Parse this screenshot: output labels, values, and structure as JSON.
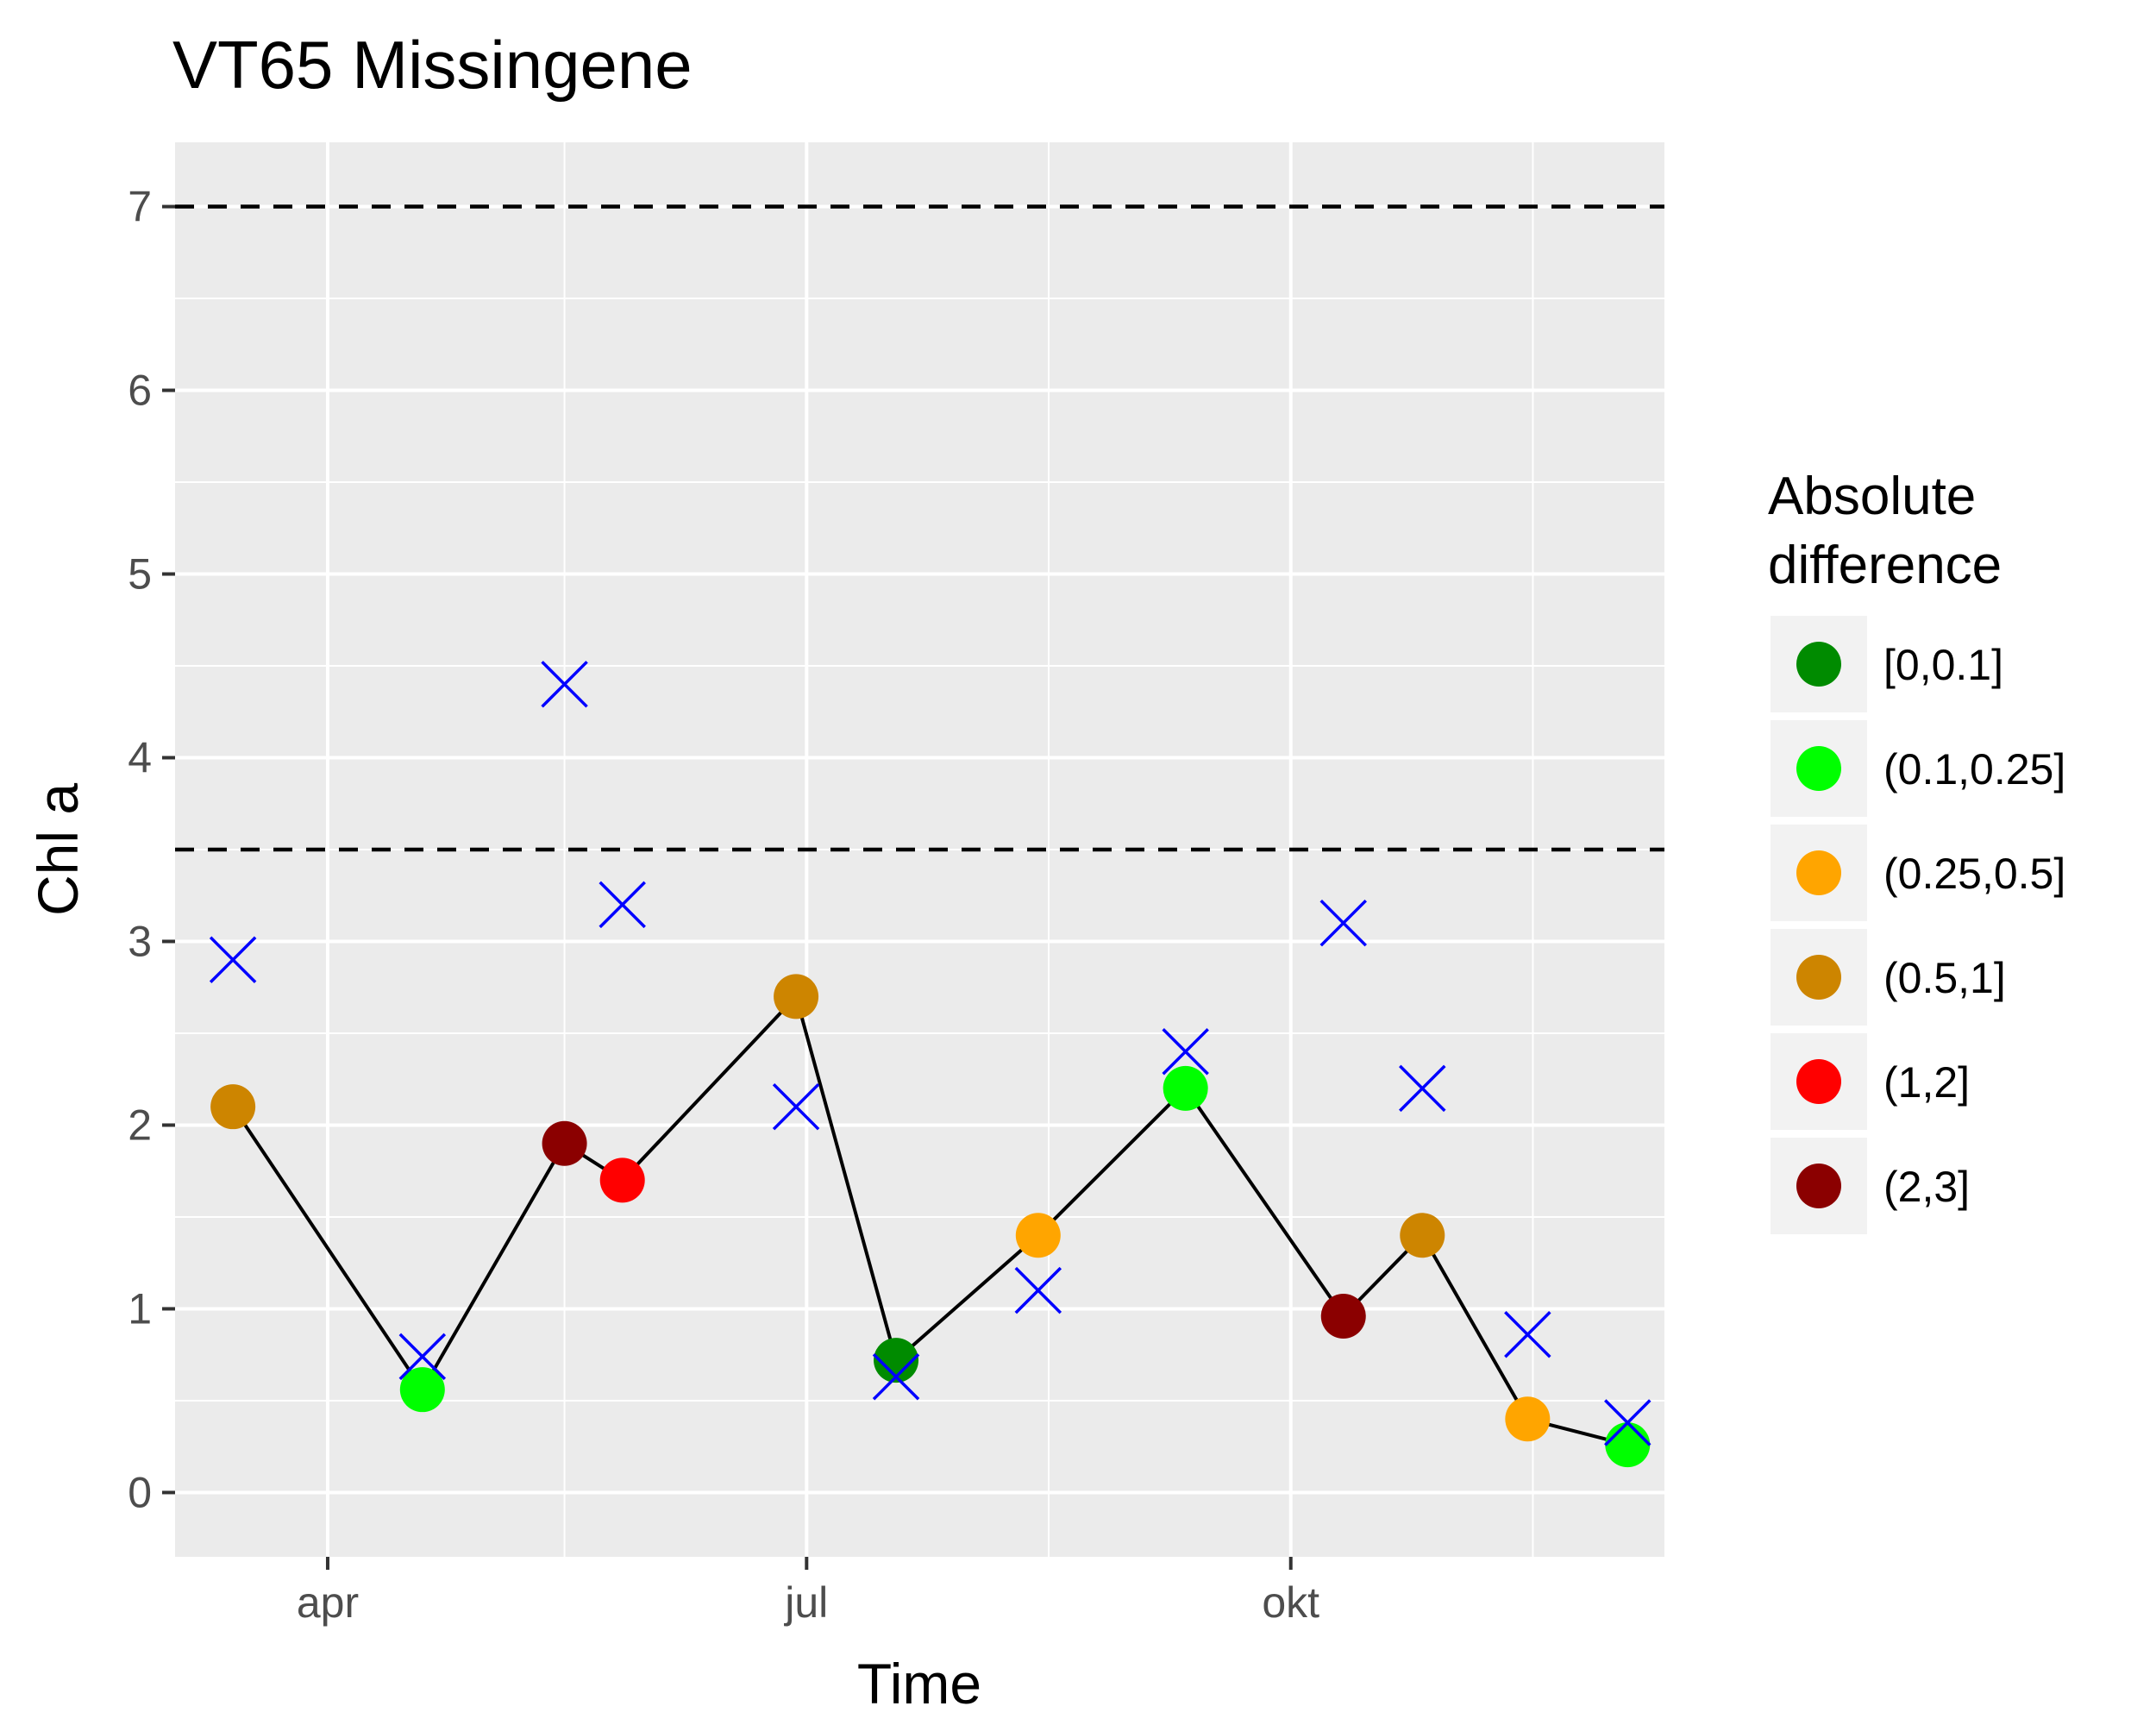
{
  "chart_data": {
    "type": "scatter",
    "title": "VT65 Missingene",
    "xlabel": "Time",
    "ylabel": "Chl a",
    "ylim": [
      -0.35,
      7.35
    ],
    "xlim": [
      "2020-03-03",
      "2020-12-11"
    ],
    "yticks": [
      0,
      1,
      2,
      3,
      4,
      5,
      6,
      7
    ],
    "xticks": [
      {
        "date": "2020-04-01",
        "label": "apr"
      },
      {
        "date": "2020-07-01",
        "label": "jul"
      },
      {
        "date": "2020-10-01",
        "label": "okt"
      }
    ],
    "x_minor_gridlines": [
      "2020-05-16",
      "2020-08-16",
      "2020-11-16"
    ],
    "reference_lines": [
      {
        "y": 3.5,
        "style": "dashed",
        "color": "#000000"
      },
      {
        "y": 7.0,
        "style": "dashed",
        "color": "#000000"
      }
    ],
    "grid": true,
    "legend_position": "right",
    "legend": {
      "title": "Absolute\ndifference",
      "title_lines": [
        "Absolute",
        "difference"
      ],
      "entries": [
        {
          "label": "[0,0.1]",
          "color": "#008b00"
        },
        {
          "label": "(0.1,0.25]",
          "color": "#00ff00"
        },
        {
          "label": "(0.25,0.5]",
          "color": "#ffa500"
        },
        {
          "label": "(0.5,1]",
          "color": "#cd8500"
        },
        {
          "label": "(1,2]",
          "color": "#ff0000"
        },
        {
          "label": "(2,3]",
          "color": "#8b0000"
        }
      ]
    },
    "series": [
      {
        "marker": "circle",
        "connected": true,
        "line_color": "#000000",
        "points": [
          {
            "date": "2020-03-14",
            "y": 2.1,
            "class": "(0.5,1]"
          },
          {
            "date": "2020-04-19",
            "y": 0.56,
            "class": "(0.1,0.25]"
          },
          {
            "date": "2020-05-16",
            "y": 1.9,
            "class": "(2,3]"
          },
          {
            "date": "2020-05-27",
            "y": 1.7,
            "class": "(1,2]"
          },
          {
            "date": "2020-06-29",
            "y": 2.7,
            "class": "(0.5,1]"
          },
          {
            "date": "2020-07-18",
            "y": 0.72,
            "class": "[0,0.1]"
          },
          {
            "date": "2020-08-14",
            "y": 1.4,
            "class": "(0.25,0.5]"
          },
          {
            "date": "2020-09-11",
            "y": 2.2,
            "class": "(0.1,0.25]"
          },
          {
            "date": "2020-10-11",
            "y": 0.96,
            "class": "(2,3]"
          },
          {
            "date": "2020-10-26",
            "y": 1.4,
            "class": "(0.5,1]"
          },
          {
            "date": "2020-11-15",
            "y": 0.4,
            "class": "(0.25,0.5]"
          },
          {
            "date": "2020-12-04",
            "y": 0.26,
            "class": "(0.1,0.25]"
          }
        ]
      },
      {
        "marker": "x",
        "connected": false,
        "color": "#0000ff",
        "points": [
          {
            "date": "2020-03-14",
            "y": 2.9
          },
          {
            "date": "2020-04-19",
            "y": 0.74
          },
          {
            "date": "2020-05-16",
            "y": 4.4
          },
          {
            "date": "2020-05-27",
            "y": 3.2
          },
          {
            "date": "2020-06-29",
            "y": 2.1
          },
          {
            "date": "2020-07-18",
            "y": 0.63
          },
          {
            "date": "2020-08-14",
            "y": 1.1
          },
          {
            "date": "2020-09-11",
            "y": 2.4
          },
          {
            "date": "2020-10-11",
            "y": 3.1
          },
          {
            "date": "2020-10-26",
            "y": 2.2
          },
          {
            "date": "2020-11-15",
            "y": 0.86
          },
          {
            "date": "2020-12-04",
            "y": 0.38
          }
        ]
      }
    ]
  }
}
